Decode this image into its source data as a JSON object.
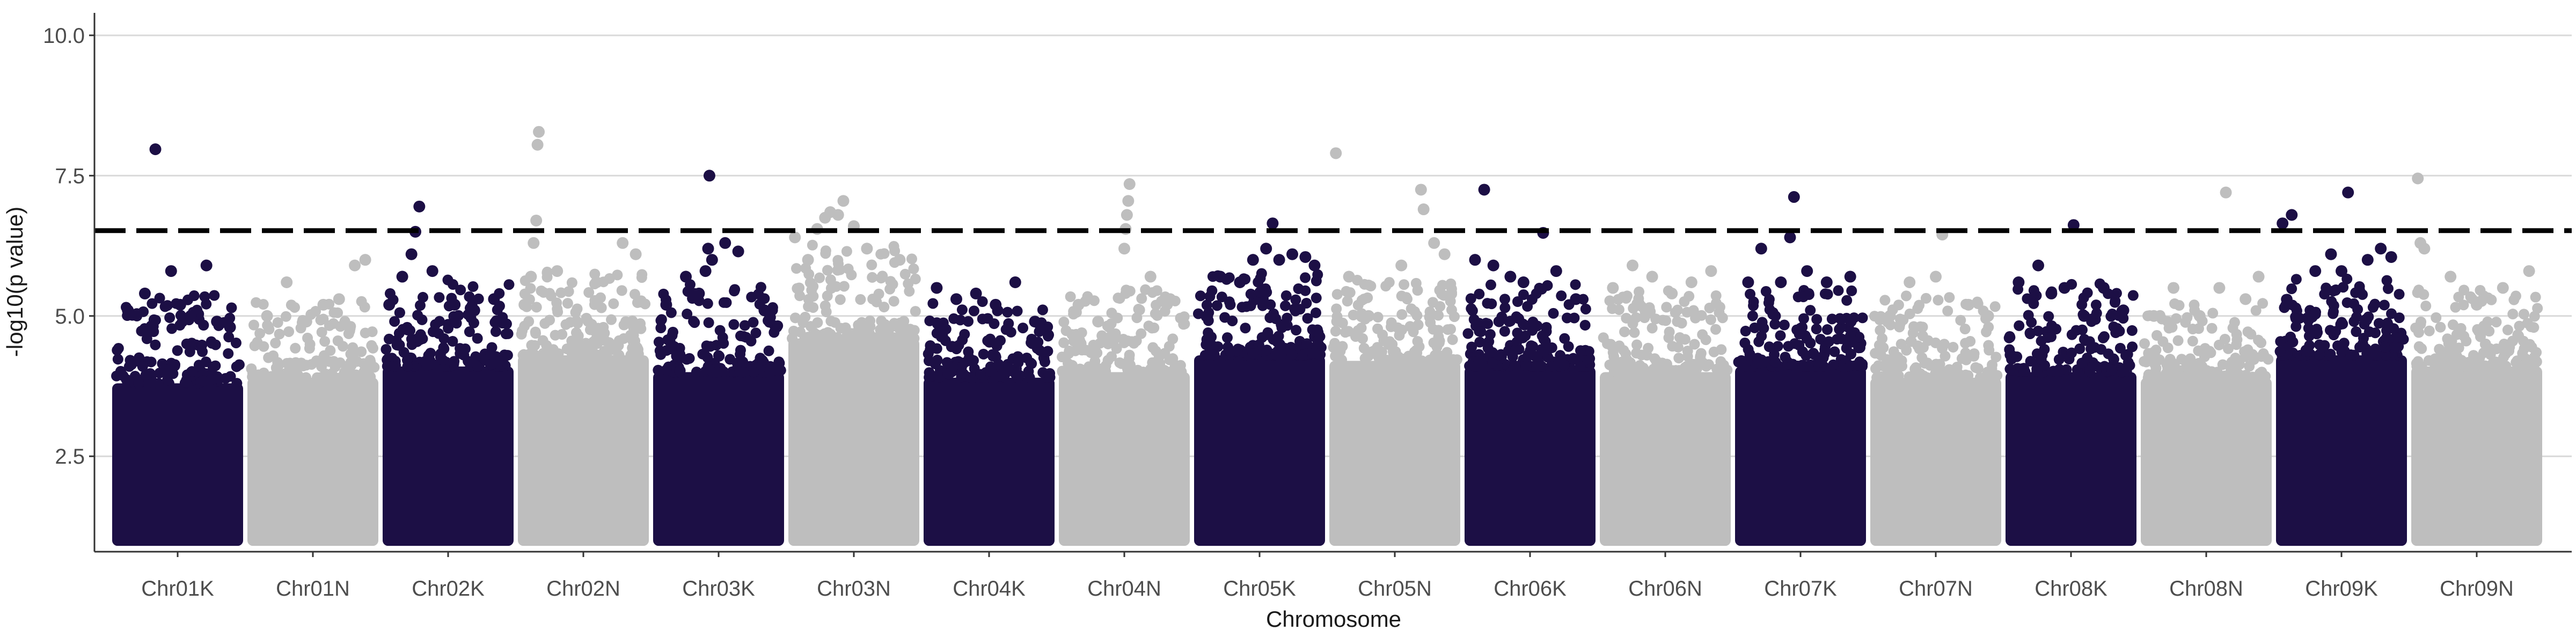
{
  "chart_data": {
    "type": "scatter",
    "subtype": "manhattan",
    "title": "",
    "xlabel": "Chromosome",
    "ylabel": "-log10(p value)",
    "ylim": [
      0.8,
      10.4
    ],
    "yticks": [
      "2.5",
      "5.0",
      "7.5",
      "10.0"
    ],
    "ytick_values": [
      2.5,
      5.0,
      7.5,
      10.0
    ],
    "grid": "horizontal major gridlines",
    "legend": "none",
    "threshold": 6.52,
    "threshold_style": "dashed black line",
    "point_floor": 1.0,
    "colors": {
      "odd": "#1c0f45",
      "even": "#bebebe",
      "threshold": "#000000",
      "grid": "#d9d9d9",
      "axis": "#333333"
    },
    "chromosomes": [
      {
        "name": "Chr01K",
        "color": "#1c0f45",
        "dense_top": 3.8,
        "max": 5.3,
        "top_points": [
          [
            0.12,
            5.1
          ],
          [
            0.25,
            5.4
          ],
          [
            0.33,
            7.97
          ],
          [
            0.45,
            5.8
          ],
          [
            0.52,
            5.2
          ],
          [
            0.6,
            5.0
          ],
          [
            0.72,
            5.9
          ],
          [
            0.8,
            4.9
          ],
          [
            0.9,
            4.8
          ]
        ]
      },
      {
        "name": "Chr01N",
        "color": "#bebebe",
        "dense_top": 3.9,
        "max": 5.2,
        "top_points": [
          [
            0.15,
            5.0
          ],
          [
            0.3,
            5.6
          ],
          [
            0.45,
            4.9
          ],
          [
            0.58,
            5.2
          ],
          [
            0.7,
            5.3
          ],
          [
            0.82,
            5.9
          ],
          [
            0.9,
            6.0
          ]
        ]
      },
      {
        "name": "Chr02K",
        "color": "#1c0f45",
        "dense_top": 4.1,
        "max": 5.6,
        "top_points": [
          [
            0.05,
            5.2
          ],
          [
            0.15,
            5.7
          ],
          [
            0.22,
            6.1
          ],
          [
            0.25,
            6.5
          ],
          [
            0.28,
            6.95
          ],
          [
            0.38,
            5.8
          ],
          [
            0.55,
            5.2
          ],
          [
            0.7,
            5.1
          ],
          [
            0.85,
            5.3
          ]
        ]
      },
      {
        "name": "Chr02N",
        "color": "#bebebe",
        "dense_top": 4.3,
        "max": 5.8,
        "top_points": [
          [
            0.05,
            5.2
          ],
          [
            0.1,
            5.7
          ],
          [
            0.12,
            6.3
          ],
          [
            0.14,
            6.7
          ],
          [
            0.15,
            8.05
          ],
          [
            0.16,
            8.28
          ],
          [
            0.3,
            5.8
          ],
          [
            0.6,
            5.6
          ],
          [
            0.8,
            6.3
          ],
          [
            0.9,
            6.1
          ]
        ]
      },
      {
        "name": "Chr03K",
        "color": "#1c0f45",
        "dense_top": 4.0,
        "max": 5.5,
        "top_points": [
          [
            0.1,
            5.2
          ],
          [
            0.25,
            5.7
          ],
          [
            0.35,
            5.4
          ],
          [
            0.4,
            5.8
          ],
          [
            0.42,
            6.2
          ],
          [
            0.45,
            6.0
          ],
          [
            0.43,
            7.5
          ],
          [
            0.55,
            6.3
          ],
          [
            0.65,
            6.15
          ],
          [
            0.85,
            5.1
          ]
        ]
      },
      {
        "name": "Chr03N",
        "color": "#bebebe",
        "dense_top": 4.6,
        "max": 6.2,
        "top_points": [
          [
            0.05,
            6.4
          ],
          [
            0.15,
            6.0
          ],
          [
            0.22,
            6.55
          ],
          [
            0.28,
            6.75
          ],
          [
            0.32,
            6.85
          ],
          [
            0.38,
            6.8
          ],
          [
            0.42,
            7.05
          ],
          [
            0.5,
            6.6
          ],
          [
            0.6,
            6.2
          ],
          [
            0.85,
            6.0
          ]
        ]
      },
      {
        "name": "Chr04K",
        "color": "#1c0f45",
        "dense_top": 3.9,
        "max": 5.2,
        "top_points": [
          [
            0.1,
            5.5
          ],
          [
            0.25,
            5.3
          ],
          [
            0.4,
            5.4
          ],
          [
            0.55,
            5.2
          ],
          [
            0.7,
            5.6
          ],
          [
            0.85,
            4.9
          ]
        ]
      },
      {
        "name": "Chr04N",
        "color": "#bebebe",
        "dense_top": 4.0,
        "max": 5.4,
        "top_points": [
          [
            0.15,
            5.2
          ],
          [
            0.3,
            4.9
          ],
          [
            0.5,
            6.2
          ],
          [
            0.51,
            6.55
          ],
          [
            0.52,
            6.8
          ],
          [
            0.53,
            7.05
          ],
          [
            0.54,
            7.35
          ],
          [
            0.7,
            5.7
          ],
          [
            0.85,
            5.3
          ]
        ]
      },
      {
        "name": "Chr05K",
        "color": "#1c0f45",
        "dense_top": 4.3,
        "max": 5.7,
        "top_points": [
          [
            0.1,
            5.0
          ],
          [
            0.2,
            5.7
          ],
          [
            0.35,
            5.6
          ],
          [
            0.45,
            6.0
          ],
          [
            0.55,
            6.2
          ],
          [
            0.6,
            6.65
          ],
          [
            0.65,
            6.0
          ],
          [
            0.75,
            6.1
          ],
          [
            0.85,
            6.05
          ],
          [
            0.92,
            5.9
          ]
        ]
      },
      {
        "name": "Chr05N",
        "color": "#bebebe",
        "dense_top": 4.2,
        "max": 5.6,
        "top_points": [
          [
            0.05,
            7.9
          ],
          [
            0.15,
            5.7
          ],
          [
            0.3,
            5.0
          ],
          [
            0.55,
            5.9
          ],
          [
            0.7,
            7.25
          ],
          [
            0.72,
            6.9
          ],
          [
            0.8,
            6.3
          ],
          [
            0.88,
            6.1
          ]
        ]
      },
      {
        "name": "Chr06K",
        "color": "#1c0f45",
        "dense_top": 4.1,
        "max": 5.5,
        "top_points": [
          [
            0.08,
            6.0
          ],
          [
            0.15,
            7.25
          ],
          [
            0.22,
            5.9
          ],
          [
            0.35,
            5.7
          ],
          [
            0.45,
            5.6
          ],
          [
            0.6,
            6.48
          ],
          [
            0.7,
            5.8
          ],
          [
            0.85,
            5.3
          ]
        ]
      },
      {
        "name": "Chr06N",
        "color": "#bebebe",
        "dense_top": 4.0,
        "max": 5.4,
        "top_points": [
          [
            0.1,
            5.5
          ],
          [
            0.25,
            5.9
          ],
          [
            0.4,
            5.7
          ],
          [
            0.55,
            5.4
          ],
          [
            0.7,
            5.6
          ],
          [
            0.85,
            5.8
          ]
        ]
      },
      {
        "name": "Chr07K",
        "color": "#1c0f45",
        "dense_top": 4.1,
        "max": 5.4,
        "top_points": [
          [
            0.1,
            5.6
          ],
          [
            0.2,
            6.2
          ],
          [
            0.35,
            5.6
          ],
          [
            0.42,
            6.4
          ],
          [
            0.45,
            7.12
          ],
          [
            0.55,
            5.8
          ],
          [
            0.7,
            5.6
          ],
          [
            0.88,
            5.7
          ]
        ]
      },
      {
        "name": "Chr07N",
        "color": "#bebebe",
        "dense_top": 3.9,
        "max": 5.3,
        "top_points": [
          [
            0.15,
            5.0
          ],
          [
            0.3,
            5.6
          ],
          [
            0.5,
            5.7
          ],
          [
            0.55,
            6.45
          ],
          [
            0.75,
            5.2
          ],
          [
            0.9,
            5.0
          ]
        ]
      },
      {
        "name": "Chr08K",
        "color": "#1c0f45",
        "dense_top": 4.0,
        "max": 5.5,
        "top_points": [
          [
            0.1,
            5.6
          ],
          [
            0.25,
            5.9
          ],
          [
            0.35,
            5.4
          ],
          [
            0.45,
            5.5
          ],
          [
            0.52,
            6.62
          ],
          [
            0.6,
            5.0
          ],
          [
            0.75,
            5.5
          ],
          [
            0.9,
            5.1
          ]
        ]
      },
      {
        "name": "Chr08N",
        "color": "#bebebe",
        "dense_top": 3.9,
        "max": 5.2,
        "top_points": [
          [
            0.1,
            5.0
          ],
          [
            0.25,
            5.5
          ],
          [
            0.45,
            5.0
          ],
          [
            0.6,
            5.5
          ],
          [
            0.65,
            7.2
          ],
          [
            0.8,
            5.3
          ],
          [
            0.9,
            5.7
          ]
        ]
      },
      {
        "name": "Chr09K",
        "color": "#1c0f45",
        "dense_top": 4.3,
        "max": 5.6,
        "top_points": [
          [
            0.05,
            6.65
          ],
          [
            0.12,
            6.8
          ],
          [
            0.3,
            5.8
          ],
          [
            0.42,
            6.1
          ],
          [
            0.5,
            5.8
          ],
          [
            0.55,
            7.2
          ],
          [
            0.7,
            6.0
          ],
          [
            0.8,
            6.2
          ],
          [
            0.88,
            6.05
          ]
        ]
      },
      {
        "name": "Chr09N",
        "color": "#bebebe",
        "dense_top": 4.1,
        "max": 5.4,
        "top_points": [
          [
            0.05,
            7.45
          ],
          [
            0.07,
            6.3
          ],
          [
            0.1,
            6.2
          ],
          [
            0.3,
            5.7
          ],
          [
            0.5,
            5.2
          ],
          [
            0.7,
            5.5
          ],
          [
            0.9,
            5.8
          ]
        ]
      }
    ]
  }
}
